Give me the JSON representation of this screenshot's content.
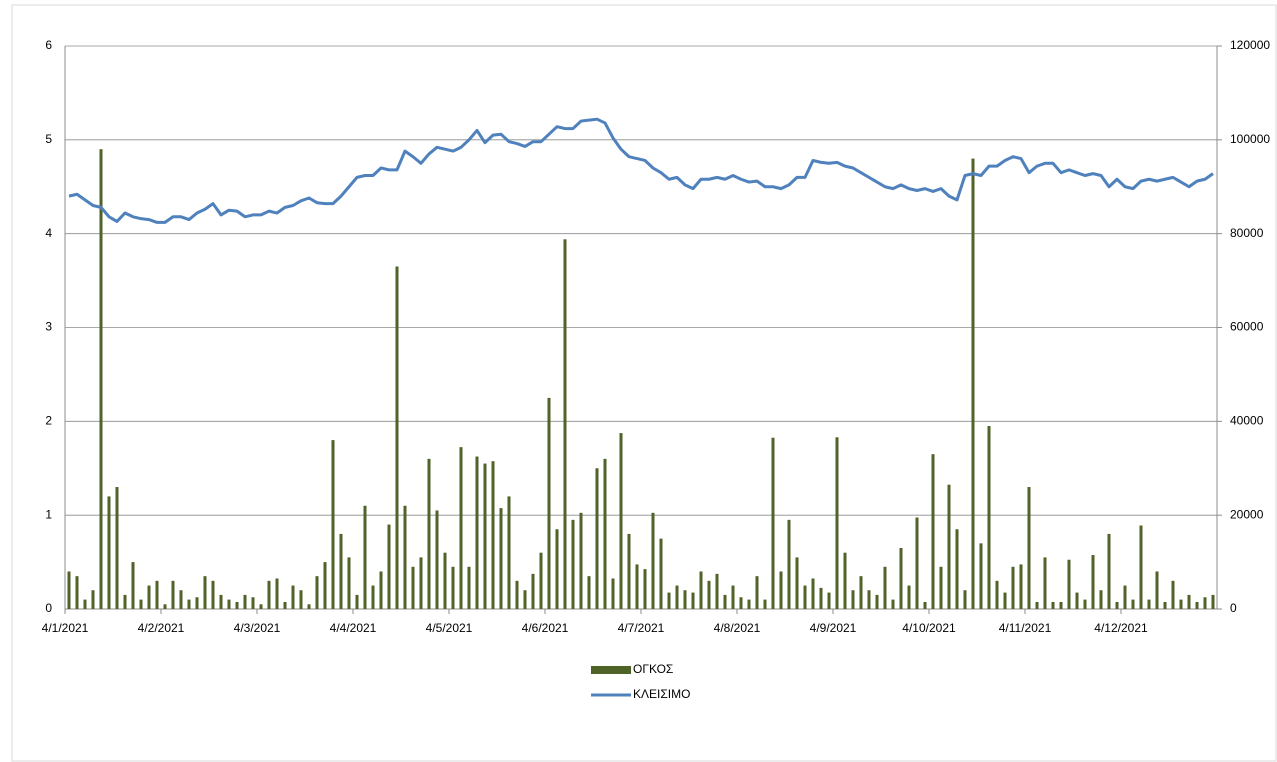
{
  "chart_data": {
    "type": "combo",
    "categories": [
      "4/1/2021",
      null,
      null,
      null,
      null,
      null,
      null,
      null,
      null,
      null,
      null,
      null,
      "4/2/2021",
      null,
      null,
      null,
      null,
      null,
      null,
      null,
      null,
      null,
      null,
      null,
      "4/3/2021",
      null,
      null,
      null,
      null,
      null,
      null,
      null,
      null,
      null,
      null,
      null,
      "4/4/2021",
      null,
      null,
      null,
      null,
      null,
      null,
      null,
      null,
      null,
      null,
      null,
      "4/5/2021",
      null,
      null,
      null,
      null,
      null,
      null,
      null,
      null,
      null,
      null,
      null,
      "4/6/2021",
      null,
      null,
      null,
      null,
      null,
      null,
      null,
      null,
      null,
      null,
      null,
      "4/7/2021",
      null,
      null,
      null,
      null,
      null,
      null,
      null,
      null,
      null,
      null,
      null,
      "4/8/2021",
      null,
      null,
      null,
      null,
      null,
      null,
      null,
      null,
      null,
      null,
      null,
      "4/9/2021",
      null,
      null,
      null,
      null,
      null,
      null,
      null,
      null,
      null,
      null,
      null,
      "4/10/2021",
      null,
      null,
      null,
      null,
      null,
      null,
      null,
      null,
      null,
      null,
      null,
      "4/11/2021",
      null,
      null,
      null,
      null,
      null,
      null,
      null,
      null,
      null,
      null,
      null,
      "4/12/2021",
      null,
      null,
      null,
      null,
      null,
      null,
      null,
      null,
      null,
      null,
      null
    ],
    "series": [
      {
        "name": "ΟΓΚΟΣ",
        "type": "bar",
        "axis": "y2",
        "color": "#4f6228",
        "values": [
          8000,
          7000,
          2000,
          4000,
          98000,
          24000,
          26000,
          3000,
          10000,
          2000,
          5000,
          6000,
          1000,
          6000,
          4000,
          2000,
          2500,
          7000,
          6000,
          3000,
          2000,
          1500,
          3000,
          2500,
          1000,
          6000,
          6500,
          1500,
          5000,
          4000,
          1000,
          7000,
          10000,
          36000,
          16000,
          11000,
          3000,
          22000,
          5000,
          8000,
          18000,
          73000,
          22000,
          9000,
          11000,
          32000,
          21000,
          12000,
          9000,
          34500,
          9000,
          32500,
          31000,
          31500,
          21500,
          24000,
          6000,
          4000,
          7500,
          12000,
          45000,
          17000,
          78800,
          19000,
          20500,
          7000,
          30000,
          32000,
          6500,
          37500,
          16000,
          9500,
          8500,
          20500,
          15000,
          3500,
          5000,
          4000,
          3500,
          8000,
          6000,
          7500,
          3000,
          5000,
          2500,
          2000,
          7000,
          2000,
          36500,
          8000,
          19000,
          11000,
          5000,
          6500,
          4500,
          3500,
          36600,
          12000,
          4000,
          7000,
          4000,
          3000,
          9000,
          2000,
          13000,
          5000,
          19500,
          1500,
          33000,
          9000,
          26500,
          17000,
          4000,
          96000,
          14000,
          39000,
          6000,
          3500,
          9000,
          9500,
          26000,
          1500,
          11000,
          1500,
          1500,
          10500,
          3500,
          2000,
          11500,
          4000,
          16000,
          1500,
          5000,
          2000,
          17800,
          2000,
          8000,
          1500,
          6000,
          2000,
          3000,
          1500,
          2500,
          3000
        ]
      },
      {
        "name": "ΚΛΕΙΣΙΜΟ",
        "type": "line",
        "color": "#4f81bd",
        "values": [
          4.4,
          4.42,
          4.36,
          4.3,
          4.28,
          4.18,
          4.13,
          4.22,
          4.18,
          4.16,
          4.15,
          4.12,
          4.12,
          4.18,
          4.18,
          4.15,
          4.22,
          4.26,
          4.32,
          4.2,
          4.25,
          4.24,
          4.18,
          4.2,
          4.2,
          4.24,
          4.22,
          4.28,
          4.3,
          4.35,
          4.38,
          4.33,
          4.32,
          4.32,
          4.4,
          4.5,
          4.6,
          4.62,
          4.62,
          4.7,
          4.68,
          4.68,
          4.88,
          4.82,
          4.75,
          4.85,
          4.92,
          4.9,
          4.88,
          4.92,
          5.0,
          5.1,
          4.97,
          5.05,
          5.06,
          4.98,
          4.96,
          4.93,
          4.98,
          4.98,
          5.06,
          5.14,
          5.12,
          5.12,
          5.2,
          5.21,
          5.22,
          5.18,
          5.02,
          4.9,
          4.82,
          4.8,
          4.78,
          4.7,
          4.65,
          4.58,
          4.6,
          4.52,
          4.48,
          4.58,
          4.58,
          4.6,
          4.58,
          4.62,
          4.58,
          4.55,
          4.56,
          4.5,
          4.5,
          4.48,
          4.52,
          4.6,
          4.6,
          4.78,
          4.76,
          4.75,
          4.76,
          4.72,
          4.7,
          4.65,
          4.6,
          4.55,
          4.5,
          4.48,
          4.52,
          4.48,
          4.46,
          4.48,
          4.45,
          4.48,
          4.4,
          4.36,
          4.62,
          4.64,
          4.62,
          4.72,
          4.72,
          4.78,
          4.82,
          4.8,
          4.65,
          4.72,
          4.75,
          4.75,
          4.65,
          4.68,
          4.65,
          4.62,
          4.64,
          4.62,
          4.5,
          4.58,
          4.5,
          4.48,
          4.56,
          4.58,
          4.56,
          4.58,
          4.6,
          4.55,
          4.5,
          4.56,
          4.58,
          4.64
        ]
      }
    ],
    "ylim": [
      0,
      6
    ],
    "yticks": [
      0,
      1,
      2,
      3,
      4,
      5,
      6
    ],
    "y2lim": [
      0,
      120000
    ],
    "y2ticks": [
      0,
      20000,
      40000,
      60000,
      80000,
      100000,
      120000
    ],
    "grid": true,
    "legend": "bottom"
  }
}
